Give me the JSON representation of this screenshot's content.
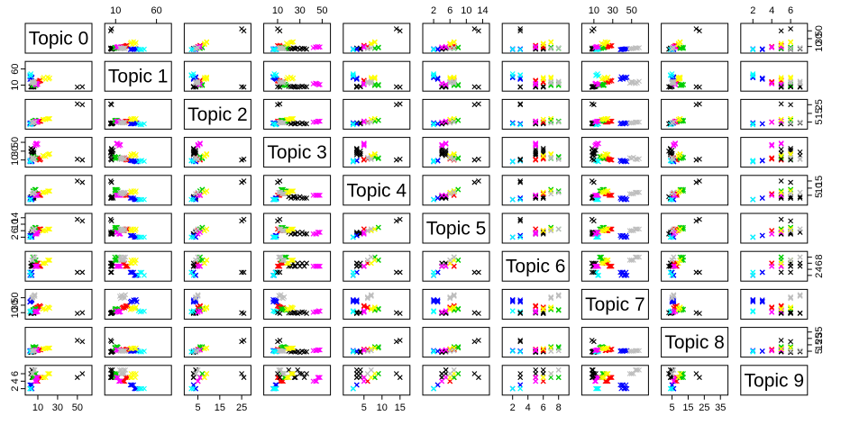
{
  "chart_data": {
    "type": "scatter",
    "subtype": "pairs-matrix",
    "marker": "x",
    "grid": false,
    "variables": [
      {
        "label": "Topic 0",
        "ticks": [
          10,
          30,
          50
        ],
        "range": [
          0,
          62
        ]
      },
      {
        "label": "Topic 1",
        "ticks": [
          10,
          60
        ],
        "range": [
          0,
          75
        ]
      },
      {
        "label": "Topic 2",
        "ticks": [
          5,
          15,
          25
        ],
        "range": [
          0,
          28
        ]
      },
      {
        "label": "Topic 3",
        "ticks": [
          10,
          30,
          50
        ],
        "range": [
          0,
          55
        ]
      },
      {
        "label": "Topic 4",
        "ticks": [
          5,
          10,
          15
        ],
        "range": [
          0,
          17
        ]
      },
      {
        "label": "Topic 5",
        "ticks": [
          2,
          6,
          10,
          14
        ],
        "range": [
          0,
          15
        ]
      },
      {
        "label": "Topic 6",
        "ticks": [
          2,
          4,
          6,
          8
        ],
        "range": [
          1,
          9
        ]
      },
      {
        "label": "Topic 7",
        "ticks": [
          10,
          30,
          50
        ],
        "range": [
          0,
          65
        ]
      },
      {
        "label": "Topic 8",
        "ticks": [
          5,
          15,
          25,
          35
        ],
        "range": [
          0,
          38
        ]
      },
      {
        "label": "Topic 9",
        "ticks": [
          2,
          4,
          6
        ],
        "range": [
          1,
          7.5
        ]
      }
    ],
    "colors": [
      "#000000",
      "#ff0000",
      "#00cd00",
      "#0000ff",
      "#00ffff",
      "#ff00ff",
      "#ffff00",
      "#bebebe"
    ],
    "points": [
      [
        4,
        5,
        3,
        22,
        3,
        4,
        5,
        9,
        4,
        6,
        0
      ],
      [
        5,
        6,
        3,
        25,
        4,
        4,
        5,
        11,
        5,
        5,
        0
      ],
      [
        6,
        4,
        4,
        28,
        3,
        5,
        6,
        8,
        4,
        7,
        0
      ],
      [
        3,
        5,
        3,
        30,
        4,
        4,
        5,
        10,
        3,
        6,
        0
      ],
      [
        5,
        7,
        4,
        32,
        3,
        5,
        6,
        12,
        5,
        6,
        0
      ],
      [
        4,
        4,
        3,
        26,
        3,
        4,
        5,
        9,
        4,
        5,
        0
      ],
      [
        6,
        6,
        4,
        24,
        4,
        5,
        6,
        10,
        5,
        6,
        0
      ],
      [
        5,
        5,
        3,
        34,
        3,
        4,
        5,
        11,
        4,
        5,
        0
      ],
      [
        4,
        6,
        4,
        20,
        4,
        5,
        5,
        9,
        5,
        7,
        0
      ],
      [
        3,
        5,
        3,
        36,
        3,
        4,
        6,
        8,
        4,
        6,
        0
      ],
      [
        10,
        20,
        5,
        12,
        6,
        6,
        6,
        25,
        7,
        4,
        1
      ],
      [
        12,
        25,
        6,
        10,
        5,
        7,
        5,
        28,
        8,
        5,
        1
      ],
      [
        8,
        18,
        5,
        14,
        6,
        6,
        6,
        22,
        6,
        4,
        1
      ],
      [
        11,
        22,
        6,
        11,
        5,
        7,
        5,
        27,
        7,
        5,
        1
      ],
      [
        9,
        19,
        5,
        13,
        6,
        6,
        6,
        24,
        8,
        4,
        1
      ],
      [
        13,
        24,
        6,
        12,
        5,
        7,
        5,
        26,
        7,
        5,
        1
      ],
      [
        10,
        21,
        5,
        15,
        6,
        6,
        6,
        23,
        6,
        4,
        1
      ],
      [
        12,
        23,
        6,
        10,
        5,
        7,
        5,
        29,
        8,
        5,
        1
      ],
      [
        6,
        10,
        6,
        16,
        8,
        7,
        7,
        18,
        10,
        5,
        2
      ],
      [
        7,
        12,
        7,
        14,
        9,
        8,
        7,
        20,
        11,
        6,
        2
      ],
      [
        5,
        9,
        6,
        18,
        8,
        7,
        8,
        16,
        10,
        5,
        2
      ],
      [
        8,
        11,
        7,
        15,
        9,
        8,
        7,
        19,
        12,
        6,
        2
      ],
      [
        6,
        13,
        6,
        17,
        8,
        7,
        8,
        17,
        11,
        5,
        2
      ],
      [
        7,
        10,
        7,
        13,
        9,
        8,
        7,
        21,
        10,
        6,
        2
      ],
      [
        5,
        12,
        6,
        16,
        8,
        7,
        8,
        18,
        12,
        5,
        2
      ],
      [
        8,
        9,
        7,
        14,
        9,
        8,
        7,
        20,
        11,
        6,
        2
      ],
      [
        3,
        30,
        3,
        8,
        3,
        3,
        3,
        40,
        5,
        3,
        3
      ],
      [
        4,
        35,
        4,
        6,
        2,
        2,
        2,
        45,
        6,
        2,
        3
      ],
      [
        2,
        28,
        3,
        9,
        3,
        3,
        3,
        38,
        5,
        3,
        3
      ],
      [
        3,
        33,
        4,
        7,
        2,
        2,
        2,
        42,
        6,
        2,
        3
      ],
      [
        4,
        32,
        3,
        8,
        3,
        3,
        3,
        44,
        5,
        3,
        3
      ],
      [
        2,
        36,
        4,
        6,
        2,
        2,
        2,
        39,
        6,
        2,
        3
      ],
      [
        3,
        29,
        3,
        9,
        3,
        3,
        3,
        41,
        5,
        3,
        3
      ],
      [
        4,
        34,
        4,
        7,
        2,
        2,
        2,
        43,
        6,
        2,
        3
      ],
      [
        2,
        40,
        2,
        8,
        2,
        2,
        3,
        12,
        4,
        2,
        4
      ],
      [
        3,
        45,
        3,
        7,
        2,
        2,
        2,
        14,
        5,
        2,
        4
      ],
      [
        2,
        42,
        2,
        9,
        2,
        2,
        3,
        13,
        4,
        2,
        4
      ],
      [
        3,
        38,
        3,
        6,
        2,
        2,
        2,
        15,
        5,
        2,
        4
      ],
      [
        8,
        15,
        5,
        45,
        5,
        4,
        5,
        12,
        6,
        4,
        5
      ],
      [
        9,
        12,
        6,
        48,
        5,
        5,
        5,
        14,
        7,
        5,
        5
      ],
      [
        7,
        14,
        5,
        42,
        5,
        4,
        5,
        11,
        6,
        4,
        5
      ],
      [
        10,
        13,
        6,
        46,
        5,
        5,
        5,
        13,
        7,
        5,
        5
      ],
      [
        9,
        16,
        5,
        44,
        5,
        4,
        5,
        12,
        6,
        4,
        5
      ],
      [
        8,
        11,
        6,
        47,
        5,
        5,
        5,
        15,
        7,
        5,
        5
      ],
      [
        15,
        30,
        8,
        20,
        7,
        6,
        6,
        20,
        9,
        5,
        6
      ],
      [
        20,
        35,
        9,
        22,
        8,
        7,
        7,
        25,
        10,
        6,
        6
      ],
      [
        18,
        28,
        8,
        18,
        7,
        6,
        6,
        18,
        9,
        5,
        6
      ],
      [
        22,
        32,
        9,
        24,
        8,
        7,
        7,
        22,
        10,
        6,
        6
      ],
      [
        16,
        34,
        8,
        19,
        7,
        6,
        6,
        21,
        9,
        5,
        6
      ],
      [
        21,
        29,
        9,
        23,
        8,
        7,
        7,
        24,
        10,
        6,
        6
      ],
      [
        5,
        18,
        4,
        14,
        6,
        6,
        7,
        50,
        5,
        6,
        7
      ],
      [
        6,
        20,
        5,
        12,
        7,
        7,
        8,
        55,
        6,
        7,
        7
      ],
      [
        4,
        16,
        4,
        15,
        6,
        6,
        7,
        48,
        5,
        6,
        7
      ],
      [
        7,
        22,
        5,
        13,
        7,
        7,
        8,
        58,
        6,
        7,
        7
      ],
      [
        5,
        19,
        4,
        16,
        6,
        6,
        7,
        52,
        5,
        6,
        7
      ],
      [
        6,
        17,
        5,
        11,
        7,
        7,
        8,
        56,
        6,
        7,
        7
      ],
      [
        4,
        21,
        4,
        14,
        6,
        6,
        7,
        50,
        5,
        6,
        7
      ],
      [
        7,
        15,
        5,
        12,
        7,
        7,
        8,
        54,
        6,
        7,
        7
      ],
      [
        55,
        5,
        25,
        10,
        14,
        12,
        3,
        10,
        20,
        6,
        0
      ],
      [
        50,
        4,
        26,
        12,
        15,
        13,
        3,
        8,
        22,
        5,
        0
      ]
    ]
  }
}
